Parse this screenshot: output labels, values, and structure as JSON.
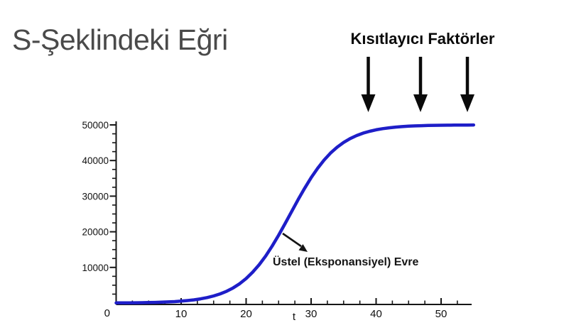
{
  "page": {
    "background": "#ffffff"
  },
  "title": {
    "text": "S-Şeklindeki Eğri",
    "color": "#4a4a4a"
  },
  "limiting_factors": {
    "label": "Kısıtlayıcı Faktörler",
    "arrow_count": 3,
    "arrow_color": "#0a0a0a"
  },
  "annotation": {
    "label": "Üstel (Eksponansiyel) Evre",
    "arrow_color": "#141414"
  },
  "chart_data": {
    "type": "line",
    "title": "",
    "xlabel": "t",
    "ylabel": "",
    "xlim": [
      0,
      55
    ],
    "ylim": [
      0,
      50000
    ],
    "grid": false,
    "legend": null,
    "axis_color": "#161616",
    "tick_label_color": "#111111",
    "origin_label": "0",
    "x_major_ticks": [
      10,
      20,
      30,
      40,
      50
    ],
    "x_minor_ticks": [
      2.5,
      5,
      7.5,
      12.5,
      15,
      17.5,
      22.5,
      25,
      27.5,
      32.5,
      35,
      37.5,
      42.5,
      45,
      47.5,
      52.5
    ],
    "y_major_ticks": [
      10000,
      20000,
      30000,
      40000,
      50000
    ],
    "y_minor_ticks": [
      2500,
      5000,
      7500,
      12500,
      15000,
      17500,
      22500,
      25000,
      27500,
      32500,
      35000,
      37500,
      42500,
      45000,
      47500
    ],
    "series": [
      {
        "name": "logistic-growth-curve",
        "color": "#1e1ec8",
        "points": [
          [
            0,
            36
          ],
          [
            1,
            47
          ],
          [
            2,
            62
          ],
          [
            3,
            81
          ],
          [
            4,
            106
          ],
          [
            5,
            139
          ],
          [
            6,
            181
          ],
          [
            7,
            237
          ],
          [
            8,
            310
          ],
          [
            9,
            406
          ],
          [
            10,
            530
          ],
          [
            11,
            692
          ],
          [
            12,
            903
          ],
          [
            13,
            1176
          ],
          [
            14,
            1529
          ],
          [
            15,
            1985
          ],
          [
            16,
            2568
          ],
          [
            17,
            3311
          ],
          [
            18,
            4252
          ],
          [
            19,
            5425
          ],
          [
            20,
            6876
          ],
          [
            21,
            8639
          ],
          [
            22,
            10741
          ],
          [
            23,
            13193
          ],
          [
            24,
            15976
          ],
          [
            25,
            19038
          ],
          [
            26,
            22315
          ],
          [
            27,
            25675
          ],
          [
            28,
            29018
          ],
          [
            29,
            32215
          ],
          [
            30,
            35173
          ],
          [
            31,
            37827
          ],
          [
            32,
            40141
          ],
          [
            33,
            42105
          ],
          [
            34,
            43737
          ],
          [
            35,
            45073
          ],
          [
            36,
            46151
          ],
          [
            37,
            47007
          ],
          [
            38,
            47681
          ],
          [
            39,
            48210
          ],
          [
            40,
            48622
          ],
          [
            41,
            48941
          ],
          [
            42,
            49188
          ],
          [
            43,
            49377
          ],
          [
            44,
            49523
          ],
          [
            45,
            49635
          ],
          [
            46,
            49721
          ],
          [
            47,
            49787
          ],
          [
            48,
            49837
          ],
          [
            49,
            49876
          ],
          [
            50,
            49905
          ],
          [
            51,
            49928
          ],
          [
            52,
            49945
          ],
          [
            53,
            49958
          ],
          [
            54,
            49968
          ],
          [
            55,
            49975
          ]
        ]
      }
    ]
  }
}
